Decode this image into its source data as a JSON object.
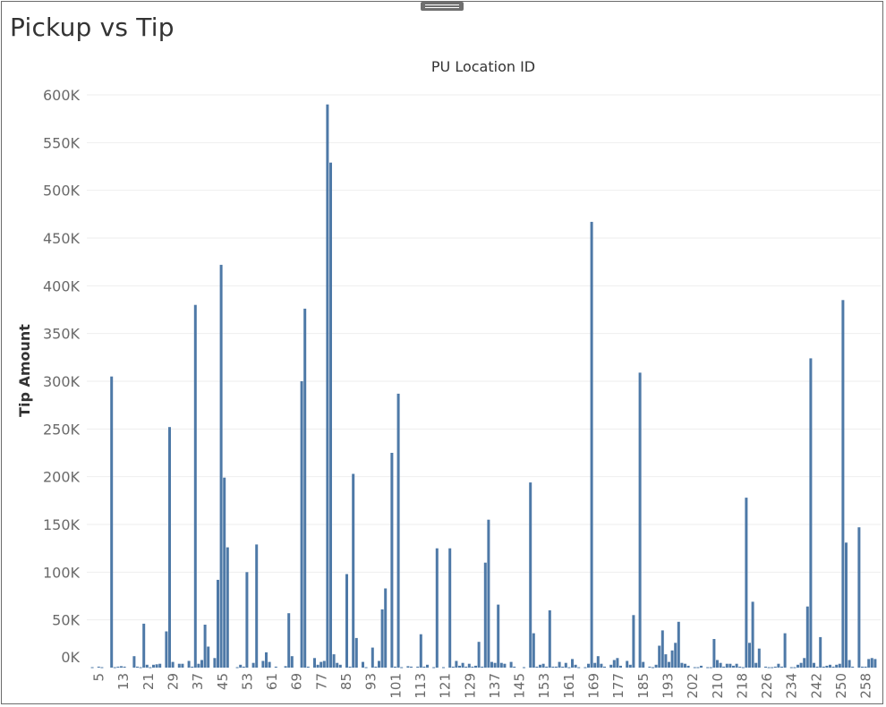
{
  "title": "Pickup vs Tip",
  "chart_data": {
    "type": "bar",
    "title": "Pickup vs Tip",
    "xlabel": "PU Location ID",
    "ylabel": "Tip Amount",
    "ylim": [
      0,
      600000
    ],
    "yticks": [
      0,
      50000,
      100000,
      150000,
      200000,
      250000,
      300000,
      350000,
      400000,
      450000,
      500000,
      550000,
      600000
    ],
    "ytick_labels": [
      "0K",
      "50K",
      "100K",
      "150K",
      "200K",
      "250K",
      "300K",
      "350K",
      "400K",
      "450K",
      "500K",
      "550K",
      "600K"
    ],
    "xtick_labels": [
      "5",
      "13",
      "21",
      "29",
      "37",
      "45",
      "53",
      "61",
      "69",
      "77",
      "85",
      "93",
      "101",
      "113",
      "121",
      "129",
      "137",
      "145",
      "153",
      "161",
      "169",
      "177",
      "185",
      "193",
      "202",
      "210",
      "218",
      "226",
      "234",
      "242",
      "250",
      "258"
    ],
    "color": "#4E79A7",
    "grid": true,
    "bars": [
      [
        1,
        500
      ],
      [
        3,
        1000
      ],
      [
        4,
        500
      ],
      [
        7,
        305000
      ],
      [
        8,
        500
      ],
      [
        9,
        1000
      ],
      [
        10,
        1500
      ],
      [
        11,
        1000
      ],
      [
        14,
        12000
      ],
      [
        15,
        1000
      ],
      [
        16,
        500
      ],
      [
        17,
        46000
      ],
      [
        18,
        3000
      ],
      [
        19,
        500
      ],
      [
        20,
        3000
      ],
      [
        21,
        3500
      ],
      [
        22,
        4000
      ],
      [
        24,
        38000
      ],
      [
        25,
        252000
      ],
      [
        26,
        6000
      ],
      [
        28,
        4000
      ],
      [
        29,
        4000
      ],
      [
        31,
        7000
      ],
      [
        32,
        1000
      ],
      [
        33,
        380000
      ],
      [
        34,
        4000
      ],
      [
        35,
        8000
      ],
      [
        36,
        45000
      ],
      [
        37,
        22000
      ],
      [
        39,
        10000
      ],
      [
        40,
        92000
      ],
      [
        41,
        422000
      ],
      [
        42,
        199000
      ],
      [
        43,
        126000
      ],
      [
        46,
        500
      ],
      [
        47,
        3000
      ],
      [
        48,
        1000
      ],
      [
        49,
        100000
      ],
      [
        51,
        5000
      ],
      [
        52,
        129000
      ],
      [
        54,
        7000
      ],
      [
        55,
        16000
      ],
      [
        56,
        6000
      ],
      [
        58,
        1000
      ],
      [
        61,
        1500
      ],
      [
        62,
        57000
      ],
      [
        63,
        12000
      ],
      [
        66,
        300000
      ],
      [
        67,
        376000
      ],
      [
        68,
        1000
      ],
      [
        70,
        10000
      ],
      [
        71,
        3000
      ],
      [
        72,
        6000
      ],
      [
        73,
        7000
      ],
      [
        74,
        590000
      ],
      [
        75,
        529000
      ],
      [
        76,
        14000
      ],
      [
        77,
        5000
      ],
      [
        78,
        3000
      ],
      [
        80,
        98000
      ],
      [
        81,
        1000
      ],
      [
        82,
        203000
      ],
      [
        83,
        31000
      ],
      [
        85,
        6000
      ],
      [
        86,
        500
      ],
      [
        88,
        21000
      ],
      [
        89,
        1000
      ],
      [
        90,
        7000
      ],
      [
        91,
        61000
      ],
      [
        92,
        83000
      ],
      [
        94,
        225000
      ],
      [
        95,
        1000
      ],
      [
        96,
        287000
      ],
      [
        97,
        500
      ],
      [
        99,
        1500
      ],
      [
        100,
        1000
      ],
      [
        102,
        1000
      ],
      [
        103,
        35000
      ],
      [
        104,
        1000
      ],
      [
        105,
        3000
      ],
      [
        107,
        500
      ],
      [
        108,
        125000
      ],
      [
        110,
        500
      ],
      [
        112,
        125000
      ],
      [
        113,
        1000
      ],
      [
        114,
        7000
      ],
      [
        115,
        2000
      ],
      [
        116,
        5000
      ],
      [
        117,
        1000
      ],
      [
        118,
        4000
      ],
      [
        119,
        1000
      ],
      [
        120,
        2000
      ],
      [
        121,
        27000
      ],
      [
        122,
        1000
      ],
      [
        123,
        110000
      ],
      [
        124,
        155000
      ],
      [
        125,
        6000
      ],
      [
        126,
        5000
      ],
      [
        127,
        66000
      ],
      [
        128,
        5000
      ],
      [
        129,
        4000
      ],
      [
        131,
        6000
      ],
      [
        132,
        1000
      ],
      [
        135,
        500
      ],
      [
        137,
        194000
      ],
      [
        138,
        36000
      ],
      [
        139,
        1000
      ],
      [
        140,
        3000
      ],
      [
        141,
        4000
      ],
      [
        142,
        1000
      ],
      [
        143,
        60000
      ],
      [
        144,
        1000
      ],
      [
        145,
        1000
      ],
      [
        146,
        6000
      ],
      [
        147,
        1000
      ],
      [
        148,
        5000
      ],
      [
        149,
        500
      ],
      [
        150,
        9000
      ],
      [
        151,
        3000
      ],
      [
        152,
        500
      ],
      [
        154,
        500
      ],
      [
        155,
        4000
      ],
      [
        156,
        467000
      ],
      [
        157,
        5000
      ],
      [
        158,
        12000
      ],
      [
        159,
        4000
      ],
      [
        160,
        1000
      ],
      [
        162,
        3000
      ],
      [
        163,
        8000
      ],
      [
        164,
        10000
      ],
      [
        165,
        2000
      ],
      [
        167,
        7000
      ],
      [
        168,
        3000
      ],
      [
        169,
        55000
      ],
      [
        171,
        309000
      ],
      [
        172,
        6000
      ],
      [
        174,
        1000
      ],
      [
        175,
        500
      ],
      [
        176,
        3000
      ],
      [
        177,
        23000
      ],
      [
        178,
        39000
      ],
      [
        179,
        14000
      ],
      [
        180,
        6000
      ],
      [
        181,
        18000
      ],
      [
        182,
        26000
      ],
      [
        183,
        48000
      ],
      [
        184,
        5000
      ],
      [
        185,
        4000
      ],
      [
        186,
        2000
      ],
      [
        188,
        500
      ],
      [
        189,
        500
      ],
      [
        190,
        2000
      ],
      [
        192,
        500
      ],
      [
        193,
        500
      ],
      [
        194,
        30000
      ],
      [
        195,
        8000
      ],
      [
        196,
        5000
      ],
      [
        197,
        1000
      ],
      [
        198,
        4000
      ],
      [
        199,
        4000
      ],
      [
        200,
        2000
      ],
      [
        201,
        4000
      ],
      [
        202,
        1000
      ],
      [
        203,
        500
      ],
      [
        204,
        178000
      ],
      [
        205,
        26000
      ],
      [
        206,
        69000
      ],
      [
        207,
        5000
      ],
      [
        208,
        20000
      ],
      [
        210,
        1000
      ],
      [
        211,
        500
      ],
      [
        212,
        500
      ],
      [
        213,
        1000
      ],
      [
        214,
        4000
      ],
      [
        215,
        1000
      ],
      [
        216,
        36000
      ],
      [
        218,
        500
      ],
      [
        219,
        500
      ],
      [
        220,
        3000
      ],
      [
        221,
        5000
      ],
      [
        222,
        10000
      ],
      [
        223,
        64000
      ],
      [
        224,
        324000
      ],
      [
        225,
        5000
      ],
      [
        226,
        1000
      ],
      [
        227,
        32000
      ],
      [
        228,
        1000
      ],
      [
        229,
        2000
      ],
      [
        230,
        3000
      ],
      [
        231,
        1000
      ],
      [
        232,
        3000
      ],
      [
        233,
        4000
      ],
      [
        234,
        385000
      ],
      [
        235,
        131000
      ],
      [
        236,
        8000
      ],
      [
        237,
        1000
      ],
      [
        239,
        147000
      ],
      [
        240,
        1000
      ],
      [
        241,
        1000
      ],
      [
        242,
        9000
      ],
      [
        243,
        10000
      ],
      [
        244,
        9000
      ]
    ]
  }
}
